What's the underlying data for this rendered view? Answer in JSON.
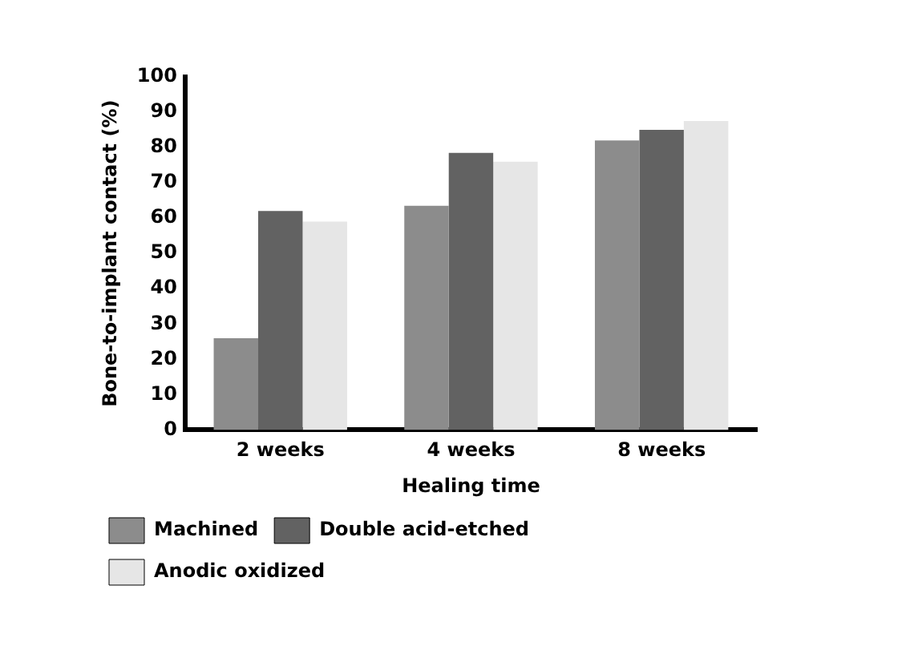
{
  "chart_data": {
    "type": "bar",
    "xlabel": "Healing time",
    "ylabel": "Bone-to-implant contact (%)",
    "categories": [
      "2 weeks",
      "4 weeks",
      "8 weeks"
    ],
    "series": [
      {
        "name": "Machined",
        "color": "#8c8c8c",
        "values": [
          26,
          63.5,
          82
        ]
      },
      {
        "name": "Double acid-etched",
        "color": "#626262",
        "values": [
          62,
          78.5,
          85
        ]
      },
      {
        "name": "Anodic oxidized",
        "color": "#e6e6e6",
        "values": [
          59,
          76,
          87.5
        ]
      }
    ],
    "ylim": [
      0,
      100
    ],
    "yticks": [
      0,
      10,
      20,
      30,
      40,
      50,
      60,
      70,
      80,
      90,
      100
    ],
    "grid": false,
    "legend": "bottom"
  }
}
